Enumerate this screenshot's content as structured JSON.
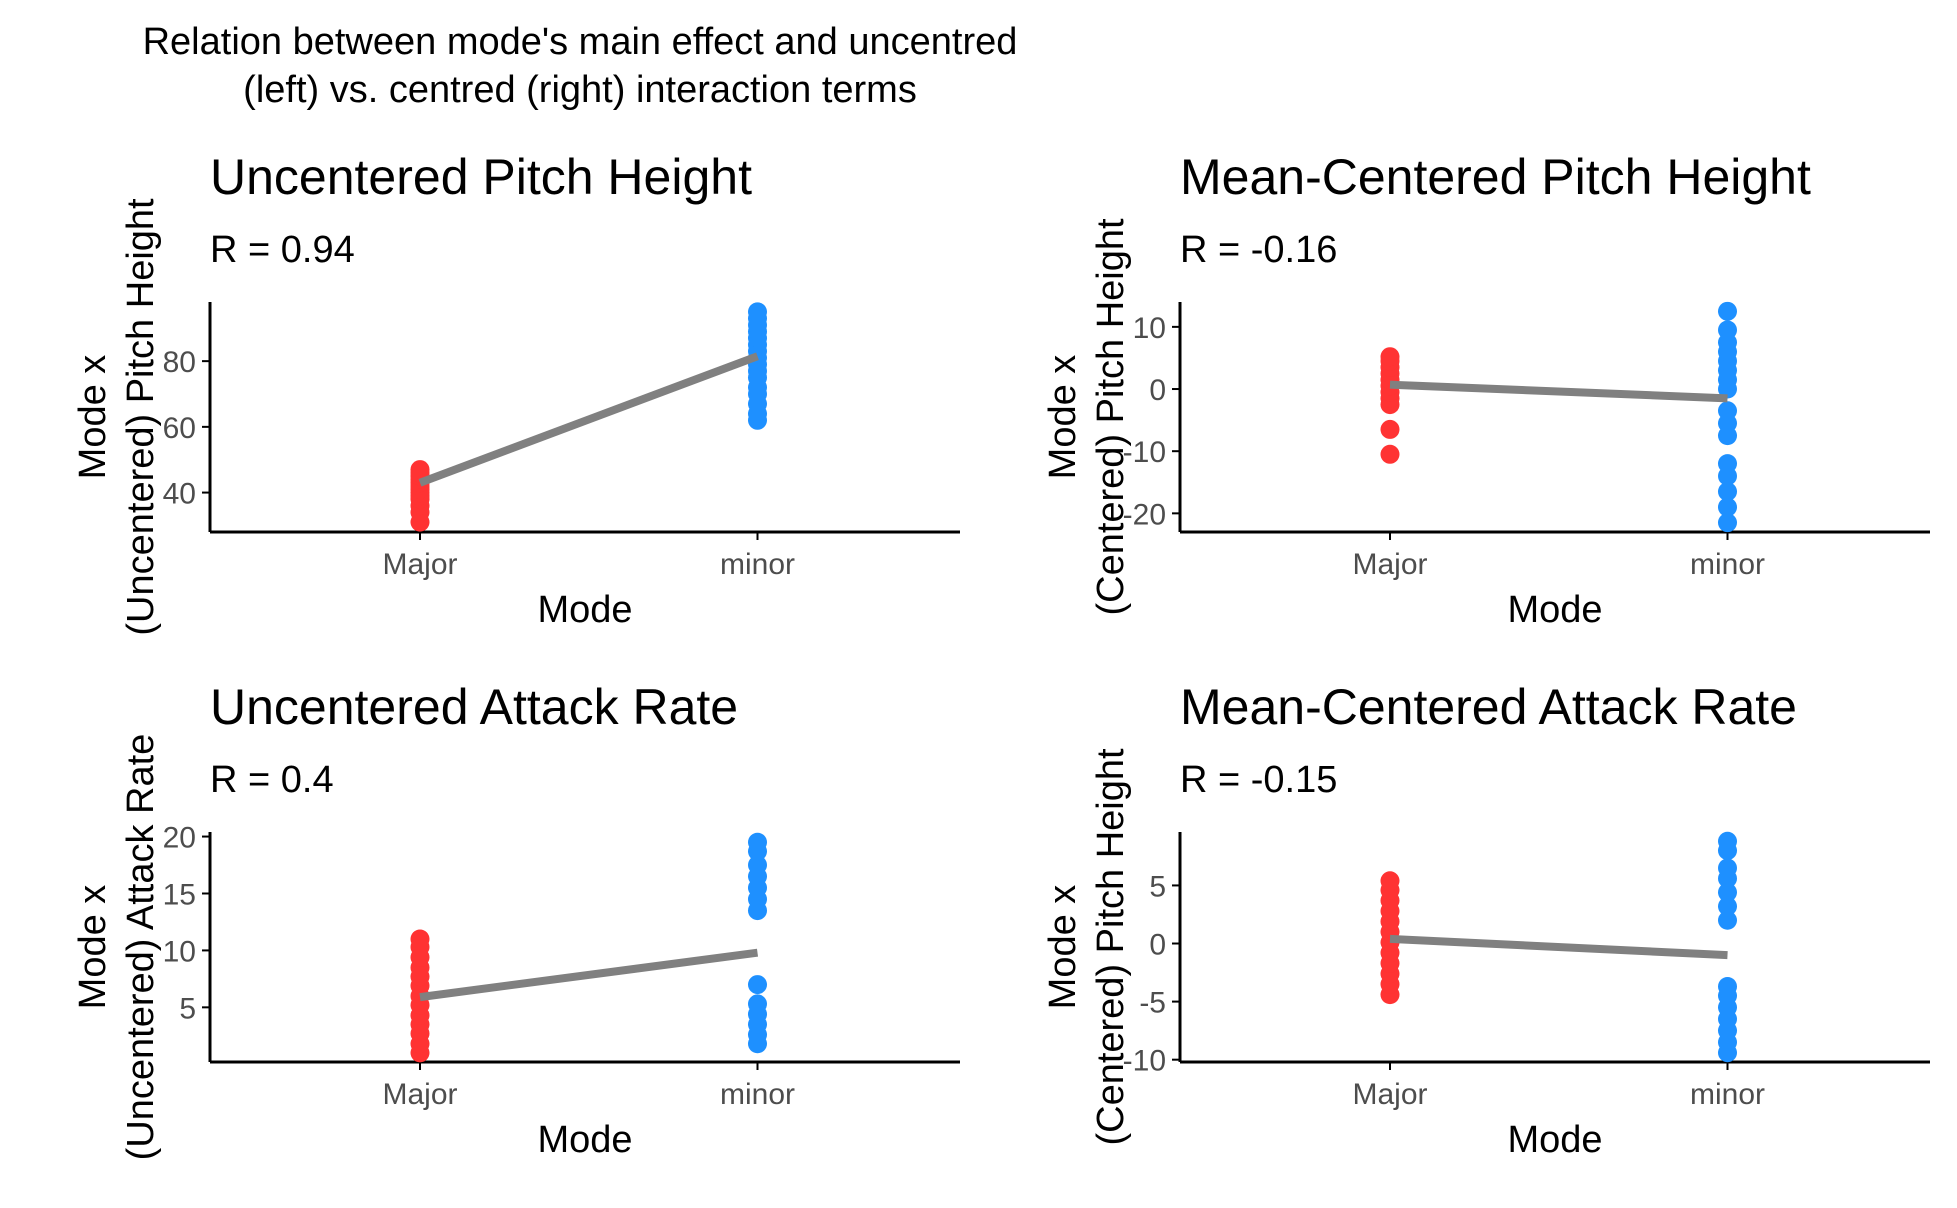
{
  "figure": {
    "title_line1": "Relation between mode's main effect and uncentred",
    "title_line2": "(left) vs. centred (right) interaction terms"
  },
  "colors": {
    "major": "#FF3333",
    "minor": "#1E90FF",
    "line": "#808080",
    "axis": "#000000",
    "tick_label": "#4D4D4D"
  },
  "chart_data": [
    {
      "type": "scatter",
      "title": "Uncentered Pitch Height",
      "subtitle": "R = 0.94",
      "xlabel": "Mode",
      "ylabel_line1": "Mode x",
      "ylabel_line2": "(Uncentered) Pitch Height",
      "categories": [
        "Major",
        "minor"
      ],
      "ylim": [
        28,
        98
      ],
      "yticks": [
        40,
        60,
        80
      ],
      "series": [
        {
          "category": "Major",
          "values": [
            31,
            34,
            36,
            38,
            39,
            40,
            41,
            42,
            43,
            44,
            45,
            46,
            47
          ]
        },
        {
          "category": "minor",
          "values": [
            62,
            64,
            67,
            70,
            72,
            75,
            77,
            79,
            81,
            83,
            85,
            87,
            89,
            91,
            93,
            95
          ]
        }
      ],
      "fit_line": [
        43,
        81.5
      ]
    },
    {
      "type": "scatter",
      "title": "Mean-Centered Pitch Height",
      "subtitle": "R = -0.16",
      "xlabel": "Mode",
      "ylabel_line1": "Mode x",
      "ylabel_line2": "(Centered) Pitch Height",
      "categories": [
        "Major",
        "minor"
      ],
      "ylim": [
        -23,
        14
      ],
      "yticks": [
        -20,
        -10,
        0,
        10
      ],
      "series": [
        {
          "category": "Major",
          "values": [
            -10.5,
            -6.5,
            -2.5,
            -1.5,
            -0.5,
            0.5,
            1.5,
            2.5,
            3.5,
            4.5,
            5.2
          ]
        },
        {
          "category": "minor",
          "values": [
            -21.5,
            -19,
            -16.5,
            -14,
            -12,
            -7.5,
            -5.5,
            -3.5,
            0,
            1.5,
            3,
            4.5,
            6,
            7.5,
            9.5,
            12.5
          ]
        }
      ],
      "fit_line": [
        0.7,
        -1.5
      ]
    },
    {
      "type": "scatter",
      "title": "Uncentered Attack Rate",
      "subtitle": "R = 0.4",
      "xlabel": "Mode",
      "ylabel_line1": "Mode x",
      "ylabel_line2": "(Uncentered) Attack Rate",
      "categories": [
        "Major",
        "minor"
      ],
      "ylim": [
        0.2,
        20.4
      ],
      "yticks": [
        5,
        10,
        15,
        20
      ],
      "series": [
        {
          "category": "Major",
          "values": [
            1,
            1.8,
            2.7,
            3.5,
            4.3,
            5.2,
            6,
            6.9,
            7.7,
            8.5,
            9.4,
            10.3,
            11
          ]
        },
        {
          "category": "minor",
          "values": [
            1.8,
            2.6,
            3.5,
            4.4,
            5.3,
            7,
            13.5,
            14.5,
            15.5,
            16.5,
            17.5,
            18.7,
            19.5
          ]
        }
      ],
      "fit_line": [
        5.9,
        9.8
      ]
    },
    {
      "type": "scatter",
      "title": "Mean-Centered Attack Rate",
      "subtitle": "R = -0.15",
      "xlabel": "Mode",
      "ylabel_line1": "Mode x",
      "ylabel_line2": "(Centered) Pitch Height",
      "categories": [
        "Major",
        "minor"
      ],
      "ylim": [
        -10.2,
        9.6
      ],
      "yticks": [
        -10,
        -5,
        0,
        5
      ],
      "series": [
        {
          "category": "Major",
          "values": [
            -4.4,
            -3.5,
            -2.6,
            -1.7,
            -0.8,
            0.1,
            1,
            1.9,
            2.8,
            3.7,
            4.6,
            5.4
          ]
        },
        {
          "category": "minor",
          "values": [
            -9.4,
            -8.5,
            -7.5,
            -6.5,
            -5.5,
            -4.5,
            -3.7,
            2,
            3.2,
            4.4,
            5.6,
            6.5,
            8,
            8.8
          ]
        }
      ],
      "fit_line": [
        0.4,
        -1
      ]
    }
  ]
}
